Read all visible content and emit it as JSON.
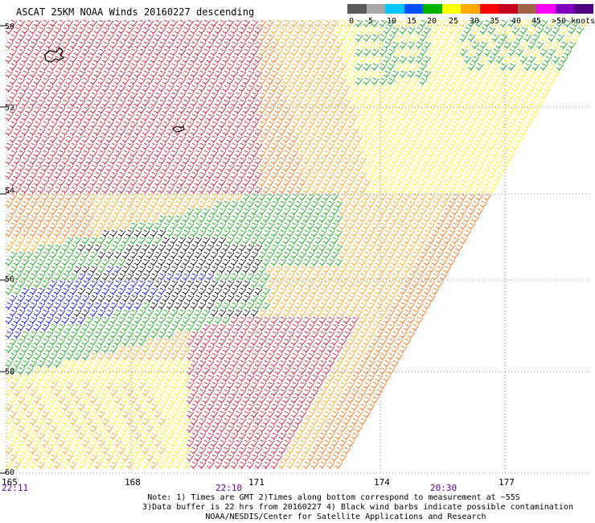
{
  "title": "ASCAT 25KM NOAA Winds 20160227 descending",
  "legend": {
    "labels": [
      "0",
      "5",
      "10",
      "15",
      "20",
      "25",
      "30",
      "35",
      "40",
      "45",
      ">50 knots"
    ],
    "colors": [
      "#5a5a5a",
      "#a8a8a8",
      "#00c8ff",
      "#0050ff",
      "#00b400",
      "#ffff00",
      "#ffaa00",
      "#ff0000",
      "#c8001e",
      "#a06446",
      "#ff00ff",
      "#8000c0",
      "#500080"
    ]
  },
  "axes": {
    "lat_labels": [
      "50",
      "52",
      "54",
      "56",
      "58",
      "60"
    ],
    "lon_labels": [
      "165",
      "168",
      "171",
      "174",
      "177"
    ],
    "times": [
      "22:11",
      "22:10",
      "20:30"
    ]
  },
  "map": {
    "barb_colors": {
      "black": "#000000",
      "blue": "#0000ff",
      "green": "#00aa00",
      "yellow": "#ffee00",
      "orange": "#ffa000",
      "dark_orange": "#ff6a00",
      "red": "#e0102a",
      "crimson": "#c00028"
    },
    "grid_color": "#888888"
  },
  "notes": {
    "line1": "Note: 1) Times are GMT 2)Times along bottom correspond to measurement at ~55S",
    "line2": "3)Data buffer is 22 hrs from 20160227 4) Black wind barbs indicate possible contamination",
    "line3": "NOAA/NESDIS/Center for Satellite Applications and Research"
  }
}
